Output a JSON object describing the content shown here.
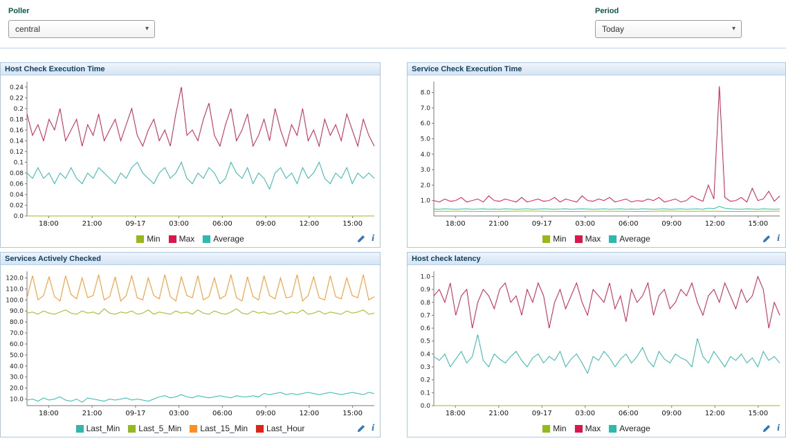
{
  "filters": {
    "poller_label": "Poller",
    "poller_value": "central",
    "period_label": "Period",
    "period_value": "Today"
  },
  "icons": {
    "dropdown_glyph": "▾",
    "info_glyph": "i",
    "edit": "pencil-icon",
    "info": "info-icon"
  },
  "colors": {
    "min_green": "#97b81c",
    "max_crimson": "#d9174a",
    "average_teal": "#2fb8ac",
    "last15_orange": "#ff9020",
    "lasthour_red": "#e32212",
    "panel_border": "#abc8e2",
    "title_text": "#113f5e"
  },
  "x_axis": {
    "labels": [
      "18:00",
      "21:00",
      "09-17",
      "03:00",
      "06:00",
      "09:00",
      "12:00",
      "15:00"
    ],
    "fractions": [
      0.0625,
      0.1875,
      0.3125,
      0.4375,
      0.5625,
      0.6875,
      0.8125,
      0.9375
    ]
  },
  "chart_data": [
    {
      "type": "line",
      "title": "Host Check Execution Time",
      "yrange": [
        0,
        0.25
      ],
      "ytick_values": [
        0,
        0.02,
        0.04,
        0.06,
        0.08,
        0.1,
        0.12,
        0.14,
        0.16,
        0.18,
        0.2,
        0.22,
        0.24
      ],
      "ytick_labels": [
        "0.0",
        "0.02",
        "0.04",
        "0.06",
        "0.08",
        "0.1",
        "0.12",
        "0.14",
        "0.16",
        "0.18",
        "0.2",
        "0.22",
        "0.24"
      ],
      "series": [
        {
          "name": "Min",
          "color": "#97b81c",
          "values": [
            0,
            0
          ]
        },
        {
          "name": "Max",
          "color": "#d9174a",
          "values": [
            0.19,
            0.15,
            0.17,
            0.14,
            0.18,
            0.16,
            0.2,
            0.14,
            0.16,
            0.18,
            0.13,
            0.17,
            0.15,
            0.19,
            0.14,
            0.16,
            0.18,
            0.14,
            0.17,
            0.2,
            0.15,
            0.13,
            0.16,
            0.18,
            0.14,
            0.16,
            0.13,
            0.19,
            0.24,
            0.15,
            0.16,
            0.14,
            0.18,
            0.21,
            0.15,
            0.13,
            0.17,
            0.2,
            0.14,
            0.16,
            0.19,
            0.13,
            0.15,
            0.18,
            0.14,
            0.2,
            0.16,
            0.13,
            0.17,
            0.15,
            0.2,
            0.14,
            0.16,
            0.13,
            0.18,
            0.15,
            0.17,
            0.14,
            0.19,
            0.16,
            0.13,
            0.18,
            0.15,
            0.13
          ]
        },
        {
          "name": "Average",
          "color": "#2fb8ac",
          "values": [
            0.08,
            0.07,
            0.09,
            0.07,
            0.08,
            0.06,
            0.08,
            0.07,
            0.09,
            0.07,
            0.06,
            0.08,
            0.07,
            0.09,
            0.08,
            0.07,
            0.06,
            0.08,
            0.07,
            0.09,
            0.1,
            0.08,
            0.07,
            0.06,
            0.08,
            0.09,
            0.07,
            0.08,
            0.1,
            0.07,
            0.06,
            0.08,
            0.07,
            0.09,
            0.08,
            0.06,
            0.07,
            0.1,
            0.08,
            0.07,
            0.09,
            0.06,
            0.08,
            0.07,
            0.05,
            0.08,
            0.09,
            0.07,
            0.08,
            0.06,
            0.09,
            0.07,
            0.08,
            0.1,
            0.07,
            0.06,
            0.08,
            0.07,
            0.09,
            0.06,
            0.08,
            0.07,
            0.08,
            0.07
          ]
        }
      ]
    },
    {
      "type": "line",
      "title": "Service Check Execution Time",
      "yrange": [
        0,
        8.7
      ],
      "ytick_values": [
        1,
        2,
        3,
        4,
        5,
        6,
        7,
        8
      ],
      "ytick_labels": [
        "1.0",
        "2.0",
        "3.0",
        "4.0",
        "5.0",
        "6.0",
        "7.0",
        "8.0"
      ],
      "series": [
        {
          "name": "Min",
          "color": "#97b81c",
          "values": [
            0.3,
            0.31,
            0.29,
            0.3,
            0.32,
            0.3,
            0.29,
            0.31,
            0.3,
            0.29,
            0.32,
            0.3,
            0.31,
            0.29,
            0.3,
            0.31
          ]
        },
        {
          "name": "Max",
          "color": "#d9174a",
          "values": [
            1.0,
            0.9,
            1.1,
            0.95,
            1.0,
            1.2,
            0.9,
            1.0,
            1.1,
            0.9,
            1.3,
            1.0,
            0.95,
            1.1,
            1.0,
            0.9,
            1.2,
            0.9,
            1.0,
            1.1,
            0.95,
            1.0,
            1.2,
            0.9,
            1.1,
            1.0,
            0.9,
            1.3,
            1.0,
            0.95,
            1.1,
            1.0,
            1.2,
            0.9,
            1.0,
            1.1,
            0.9,
            1.0,
            0.95,
            1.1,
            1.0,
            1.2,
            0.9,
            1.0,
            1.1,
            0.9,
            1.0,
            1.3,
            1.1,
            0.95,
            2.0,
            1.1,
            8.4,
            1.2,
            0.95,
            1.0,
            1.2,
            0.9,
            1.8,
            1.0,
            1.1,
            1.6,
            0.95,
            1.3
          ]
        },
        {
          "name": "Average",
          "color": "#2fb8ac",
          "values": [
            0.45,
            0.44,
            0.46,
            0.45,
            0.44,
            0.45,
            0.46,
            0.44,
            0.45,
            0.46,
            0.44,
            0.45,
            0.44,
            0.46,
            0.45,
            0.44,
            0.45,
            0.46,
            0.44,
            0.45,
            0.46,
            0.45,
            0.44,
            0.45,
            0.46,
            0.44,
            0.45,
            0.46,
            0.45,
            0.44,
            0.45,
            0.46,
            0.44,
            0.45,
            0.46,
            0.44,
            0.45,
            0.44,
            0.46,
            0.45,
            0.44,
            0.45,
            0.46,
            0.44,
            0.45,
            0.46,
            0.44,
            0.45,
            0.46,
            0.44,
            0.5,
            0.47,
            0.62,
            0.5,
            0.46,
            0.45,
            0.44,
            0.46,
            0.45,
            0.44,
            0.46,
            0.45,
            0.44,
            0.45
          ]
        }
      ]
    },
    {
      "type": "line",
      "title": "Services Actively Checked",
      "yrange": [
        4,
        126
      ],
      "ytick_values": [
        10,
        20,
        30,
        40,
        50,
        60,
        70,
        80,
        90,
        100,
        110,
        120
      ],
      "ytick_labels": [
        "10.0",
        "20.0",
        "30.0",
        "40.0",
        "50.0",
        "60.0",
        "70.0",
        "80.0",
        "90.0",
        "100.0",
        "110.0",
        "120.0"
      ],
      "series": [
        {
          "name": "Last_Min",
          "color": "#2fb8ac",
          "values": [
            9,
            10,
            8,
            11,
            9,
            10,
            12,
            9,
            8,
            10,
            7,
            11,
            10,
            9,
            8,
            10,
            9,
            10,
            11,
            9,
            10,
            9,
            8,
            10,
            12,
            13,
            11,
            12,
            14,
            12,
            11,
            13,
            12,
            11,
            12,
            13,
            12,
            11,
            13,
            12,
            12,
            13,
            12,
            15,
            14,
            15,
            16,
            14,
            15,
            14,
            15,
            16,
            15,
            14,
            15,
            16,
            15,
            14,
            15,
            16,
            15,
            14,
            16,
            15
          ]
        },
        {
          "name": "Last_5_Min",
          "color": "#97b81c",
          "values": [
            88,
            89,
            87,
            90,
            88,
            87,
            89,
            91,
            88,
            87,
            90,
            88,
            89,
            87,
            92,
            88,
            87,
            89,
            88,
            90,
            87,
            88,
            91,
            87,
            89,
            88,
            87,
            90,
            88,
            89,
            87,
            91,
            88,
            87,
            90,
            88,
            87,
            89,
            92,
            88,
            87,
            90,
            88,
            89,
            87,
            88,
            90,
            87,
            89,
            88,
            91,
            87,
            88,
            90,
            87,
            89,
            88,
            87,
            90,
            88,
            89,
            91,
            87,
            88
          ]
        },
        {
          "name": "Last_15_Min",
          "color": "#ff9020",
          "values": [
            102,
            122,
            100,
            104,
            121,
            103,
            99,
            122,
            105,
            101,
            120,
            102,
            104,
            123,
            100,
            103,
            121,
            99,
            104,
            122,
            102,
            100,
            120,
            104,
            101,
            123,
            103,
            99,
            121,
            104,
            102,
            122,
            100,
            103,
            120,
            101,
            104,
            123,
            102,
            99,
            121,
            103,
            100,
            122,
            104,
            101,
            120,
            102,
            103,
            123,
            99,
            104,
            121,
            102,
            100,
            122,
            103,
            101,
            120,
            104,
            102,
            123,
            100,
            103
          ]
        },
        {
          "name": "Last_Hour",
          "color": "#e32212",
          "values": []
        }
      ]
    },
    {
      "type": "line",
      "title": "Host check latency",
      "yrange": [
        0,
        1.04
      ],
      "ytick_values": [
        0,
        0.1,
        0.2,
        0.3,
        0.4,
        0.5,
        0.6,
        0.7,
        0.8,
        0.9,
        1.0
      ],
      "ytick_labels": [
        "0.0",
        "0.1",
        "0.2",
        "0.3",
        "0.4",
        "0.5",
        "0.6",
        "0.7",
        "0.8",
        "0.9",
        "1.0"
      ],
      "series": [
        {
          "name": "Min",
          "color": "#97b81c",
          "values": [
            0,
            0
          ]
        },
        {
          "name": "Max",
          "color": "#d9174a",
          "values": [
            0.85,
            0.9,
            0.8,
            0.95,
            0.7,
            0.85,
            0.9,
            0.6,
            0.8,
            0.9,
            0.85,
            0.75,
            0.9,
            0.95,
            0.8,
            0.85,
            0.7,
            0.9,
            0.8,
            0.95,
            0.85,
            0.6,
            0.8,
            0.9,
            0.75,
            0.85,
            0.95,
            0.8,
            0.7,
            0.9,
            0.85,
            0.8,
            0.95,
            0.75,
            0.85,
            0.65,
            0.9,
            0.8,
            0.85,
            0.95,
            0.7,
            0.85,
            0.9,
            0.75,
            0.8,
            0.9,
            0.85,
            0.95,
            0.8,
            0.7,
            0.85,
            0.9,
            0.8,
            0.95,
            0.85,
            0.75,
            0.9,
            0.8,
            0.85,
            1.0,
            0.9,
            0.6,
            0.8,
            0.7
          ]
        },
        {
          "name": "Average",
          "color": "#2fb8ac",
          "values": [
            0.38,
            0.35,
            0.4,
            0.3,
            0.36,
            0.42,
            0.33,
            0.38,
            0.55,
            0.35,
            0.3,
            0.4,
            0.36,
            0.33,
            0.38,
            0.42,
            0.35,
            0.3,
            0.37,
            0.4,
            0.33,
            0.38,
            0.35,
            0.42,
            0.3,
            0.36,
            0.4,
            0.33,
            0.25,
            0.38,
            0.35,
            0.42,
            0.37,
            0.3,
            0.36,
            0.4,
            0.33,
            0.38,
            0.45,
            0.35,
            0.3,
            0.42,
            0.36,
            0.33,
            0.4,
            0.37,
            0.35,
            0.3,
            0.52,
            0.38,
            0.33,
            0.42,
            0.36,
            0.3,
            0.38,
            0.35,
            0.4,
            0.33,
            0.37,
            0.3,
            0.42,
            0.35,
            0.38,
            0.33
          ]
        }
      ]
    }
  ]
}
